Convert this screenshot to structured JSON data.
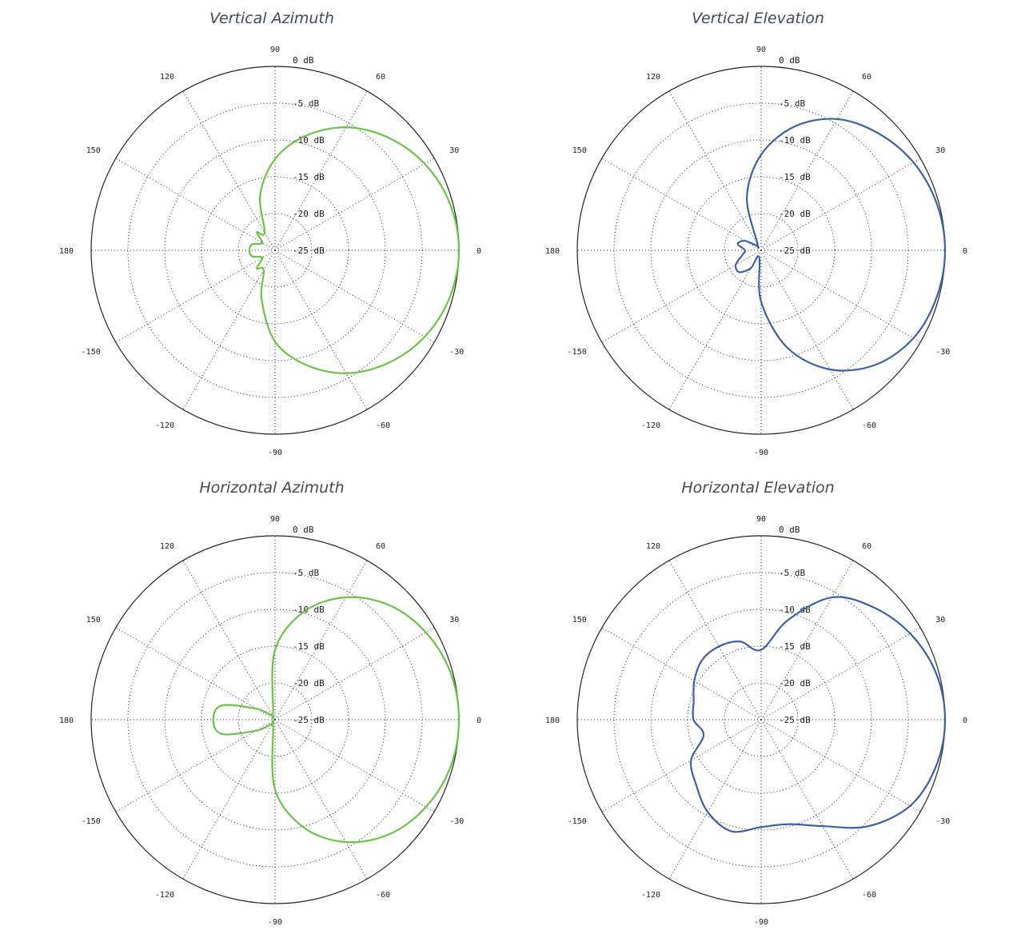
{
  "chart_data": [
    {
      "type": "polar-line",
      "title": "Vertical Azimuth",
      "color": "#6cc24a",
      "r_unit": "dB",
      "r_range": [
        -25,
        0
      ],
      "rings": [
        "0 dB",
        "-5 dB",
        "-10 dB",
        "-15 dB",
        "-20 dB",
        "-25 dB"
      ],
      "angle_ticks": [
        "90",
        "60",
        "30",
        "0",
        "-30",
        "-60",
        "-90",
        "-120",
        "-150",
        "180",
        "150",
        "120"
      ],
      "grid": true,
      "series": [
        {
          "angles_deg": [
            0,
            15,
            30,
            45,
            60,
            75,
            90,
            105,
            120,
            135,
            150,
            165,
            180,
            195,
            210,
            225,
            240,
            255,
            270,
            285,
            300,
            315,
            330,
            345
          ],
          "values_db": [
            0,
            -0.4,
            -1.5,
            -3.3,
            -5.7,
            -8.9,
            -12.6,
            -17.2,
            -22.2,
            -21.5,
            -23.0,
            -21.8,
            -21.5,
            -21.8,
            -23.0,
            -21.5,
            -21.9,
            -18.0,
            -12.6,
            -8.9,
            -5.7,
            -3.3,
            -1.5,
            -0.4
          ]
        }
      ]
    },
    {
      "type": "polar-line",
      "title": "Vertical Elevation",
      "color": "#3f5fa6",
      "r_unit": "dB",
      "r_range": [
        -25,
        0
      ],
      "rings": [
        "0 dB",
        "-5 dB",
        "-10 dB",
        "-15 dB",
        "-20 dB",
        "-25 dB"
      ],
      "angle_ticks": [
        "90",
        "60",
        "30",
        "0",
        "-30",
        "-60",
        "-90",
        "-120",
        "-150",
        "180",
        "150",
        "120"
      ],
      "grid": true,
      "series": [
        {
          "angles_deg": [
            0,
            15,
            30,
            45,
            60,
            75,
            90,
            105,
            120,
            135,
            150,
            165,
            180,
            195,
            210,
            225,
            240,
            255,
            270,
            285,
            300,
            315,
            330,
            345
          ],
          "values_db": [
            0,
            -0.3,
            -1.1,
            -2.5,
            -4.4,
            -7.6,
            -12.0,
            -17.5,
            -24.0,
            -24.0,
            -22.4,
            -21.7,
            -22.8,
            -22.3,
            -21.0,
            -20.8,
            -22.2,
            -24.0,
            -18.0,
            -11.3,
            -6.3,
            -3.0,
            -1.1,
            -0.3
          ]
        }
      ]
    },
    {
      "type": "polar-line",
      "title": "Horizontal Azimuth",
      "color": "#6cc24a",
      "r_unit": "dB",
      "r_range": [
        -25,
        0
      ],
      "rings": [
        "0 dB",
        "-5 dB",
        "-10 dB",
        "-15 dB",
        "-20 dB",
        "-25 dB"
      ],
      "angle_ticks": [
        "90",
        "60",
        "30",
        "0",
        "-30",
        "-60",
        "-90",
        "-120",
        "-150",
        "180",
        "150",
        "120"
      ],
      "grid": true,
      "series": [
        {
          "angles_deg": [
            0,
            15,
            30,
            45,
            60,
            75,
            90,
            105,
            120,
            135,
            150,
            165,
            180,
            195,
            210,
            225,
            240,
            255,
            270,
            285,
            300,
            315,
            330,
            345
          ],
          "values_db": [
            0,
            -0.3,
            -1.3,
            -3.0,
            -5.8,
            -9.8,
            -15.5,
            -24.0,
            -24.5,
            -24.0,
            -22.0,
            -17.5,
            -16.6,
            -17.5,
            -22.0,
            -24.0,
            -24.5,
            -24.0,
            -15.5,
            -9.8,
            -5.8,
            -3.0,
            -1.3,
            -0.3
          ]
        }
      ]
    },
    {
      "type": "polar-line",
      "title": "Horizontal Elevation",
      "color": "#3f5fa6",
      "r_unit": "dB",
      "r_range": [
        -25,
        0
      ],
      "rings": [
        "0 dB",
        "-5 dB",
        "-10 dB",
        "-15 dB",
        "-20 dB",
        "-25 dB"
      ],
      "angle_ticks": [
        "90",
        "60",
        "30",
        "0",
        "-30",
        "-60",
        "-90",
        "-120",
        "-150",
        "180",
        "150",
        "120"
      ],
      "grid": true,
      "series": [
        {
          "angles_deg": [
            0,
            15,
            30,
            45,
            60,
            75,
            90,
            105,
            120,
            135,
            150,
            165,
            180,
            195,
            210,
            225,
            240,
            255,
            270,
            285,
            300,
            315,
            330,
            345
          ],
          "values_db": [
            0,
            -0.4,
            -1.6,
            -3.4,
            -5.8,
            -11.0,
            -15.5,
            -14.0,
            -13.5,
            -13.6,
            -14.5,
            -15.5,
            -15.8,
            -16.9,
            -14.0,
            -12.5,
            -10.5,
            -9.3,
            -10.4,
            -10.3,
            -8.3,
            -4.5,
            -1.6,
            -0.4
          ]
        }
      ]
    }
  ]
}
